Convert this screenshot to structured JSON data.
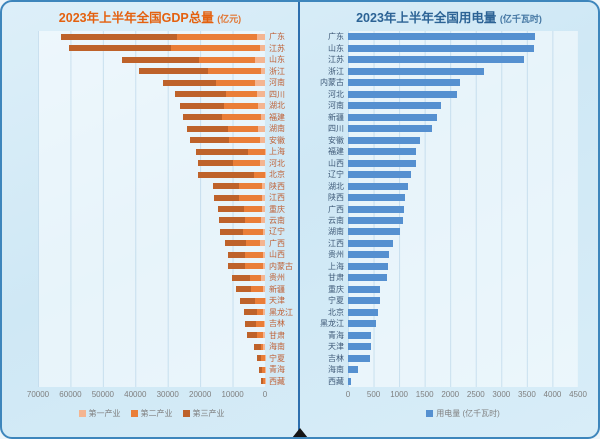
{
  "theme": {
    "canvas_bg": "#cfe8f5",
    "outer_border": "#3e86bc",
    "divider": "#2d6fae",
    "axis_text": "#7f7f7f",
    "grid_line": "#9cc4de"
  },
  "chart_data": [
    {
      "type": "bar",
      "orientation": "horizontal",
      "stacked": true,
      "axis_reversed": true,
      "title": "2023年上半年全国GDP总量",
      "title_unit": "(亿元)",
      "title_color": "#e4610f",
      "category_label_color": "#bf6137",
      "xlim": [
        0,
        70000
      ],
      "xticks": [
        70000,
        60000,
        50000,
        40000,
        30000,
        20000,
        10000,
        0
      ],
      "grid": true,
      "legend_position": "bottom",
      "categories": [
        "广东",
        "江苏",
        "山东",
        "浙江",
        "河南",
        "四川",
        "湖北",
        "福建",
        "湖南",
        "安徽",
        "上海",
        "河北",
        "北京",
        "陕西",
        "江西",
        "重庆",
        "云南",
        "辽宁",
        "广西",
        "山西",
        "内蒙古",
        "贵州",
        "新疆",
        "天津",
        "黑龙江",
        "吉林",
        "甘肃",
        "海南",
        "宁夏",
        "青海",
        "西藏"
      ],
      "series": [
        {
          "name": "第一产业",
          "color": "#f4b591",
          "values": [
            2340,
            1683,
            2989,
            1080,
            2930,
            2318,
            2094,
            1322,
            2114,
            1534,
            39,
            1684,
            48,
            823,
            917,
            826,
            1352,
            756,
            1440,
            487,
            577,
            1276,
            564,
            92,
            558,
            426,
            541,
            759,
            151,
            80,
            72
          ]
        },
        {
          "name": "第二产业",
          "color": "#ea7e38",
          "values": [
            24705,
            27193,
            17435,
            16404,
            12113,
            9633,
            10675,
            11986,
            9175,
            9551,
            5111,
            8084,
            3341,
            7297,
            7053,
            5785,
            4709,
            6029,
            4269,
            5822,
            5682,
            3383,
            3859,
            2898,
            1868,
            2264,
            1950,
            624,
            1169,
            772,
            414
          ]
        },
        {
          "name": "第三产业",
          "color": "#be622a",
          "values": [
            35865,
            31589,
            23701,
            21233,
            16283,
            15950,
            13508,
            12039,
            12709,
            11988,
            16240,
            11010,
            17232,
            7866,
            7653,
            7735,
            7980,
            7095,
            6586,
            5183,
            5022,
            5438,
            4407,
            4853,
            4140,
            3634,
            3036,
            2053,
            1152,
            924,
            634
          ]
        }
      ]
    },
    {
      "type": "bar",
      "orientation": "horizontal",
      "stacked": false,
      "axis_reversed": false,
      "title": "2023年上半年全国用电量",
      "title_unit": "(亿千瓦时)",
      "title_color": "#2c6395",
      "category_label_color": "#3f5a78",
      "xlim": [
        0,
        4500
      ],
      "xticks": [
        0,
        500,
        1000,
        1500,
        2000,
        2500,
        3000,
        3500,
        4000,
        4500
      ],
      "grid": true,
      "legend_position": "bottom",
      "categories": [
        "广东",
        "山东",
        "江苏",
        "浙江",
        "内蒙古",
        "河北",
        "河南",
        "新疆",
        "四川",
        "安徽",
        "福建",
        "山西",
        "辽宁",
        "湖北",
        "陕西",
        "广西",
        "云南",
        "湖南",
        "江西",
        "贵州",
        "上海",
        "甘肃",
        "重庆",
        "宁夏",
        "北京",
        "黑龙江",
        "青海",
        "天津",
        "吉林",
        "海南",
        "西藏"
      ],
      "series": [
        {
          "name": "用电量 (亿千瓦时)",
          "color": "#5590d0",
          "values": [
            3663,
            3634,
            3437,
            2653,
            2187,
            2138,
            1814,
            1734,
            1642,
            1409,
            1336,
            1323,
            1231,
            1176,
            1115,
            1097,
            1073,
            1011,
            889,
            803,
            790,
            759,
            631,
            619,
            594,
            557,
            459,
            454,
            423,
            202,
            60
          ]
        }
      ]
    }
  ]
}
